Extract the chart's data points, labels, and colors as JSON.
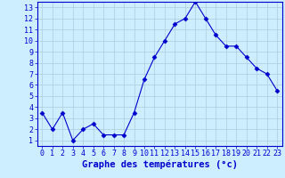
{
  "x": [
    0,
    1,
    2,
    3,
    4,
    5,
    6,
    7,
    8,
    9,
    10,
    11,
    12,
    13,
    14,
    15,
    16,
    17,
    18,
    19,
    20,
    21,
    22,
    23
  ],
  "y": [
    3.5,
    2.0,
    3.5,
    1.0,
    2.0,
    2.5,
    1.5,
    1.5,
    1.5,
    3.5,
    6.5,
    8.5,
    10.0,
    11.5,
    12.0,
    13.5,
    12.0,
    10.5,
    9.5,
    9.5,
    8.5,
    7.5,
    7.0,
    5.5
  ],
  "xlim": [
    -0.5,
    23.5
  ],
  "ylim": [
    0.5,
    13.5
  ],
  "yticks": [
    1,
    2,
    3,
    4,
    5,
    6,
    7,
    8,
    9,
    10,
    11,
    12,
    13
  ],
  "xticks": [
    0,
    1,
    2,
    3,
    4,
    5,
    6,
    7,
    8,
    9,
    10,
    11,
    12,
    13,
    14,
    15,
    16,
    17,
    18,
    19,
    20,
    21,
    22,
    23
  ],
  "xlabel": "Graphe des températures (°c)",
  "line_color": "#0000cc",
  "marker": "D",
  "marker_size": 2.5,
  "bg_color": "#cceeff",
  "grid_color": "#aaccdd",
  "axis_label_color": "#0000cc",
  "tick_label_color": "#0000cc",
  "spine_color": "#0000cc",
  "xlabel_fontsize": 7.5,
  "tick_fontsize": 6.0
}
